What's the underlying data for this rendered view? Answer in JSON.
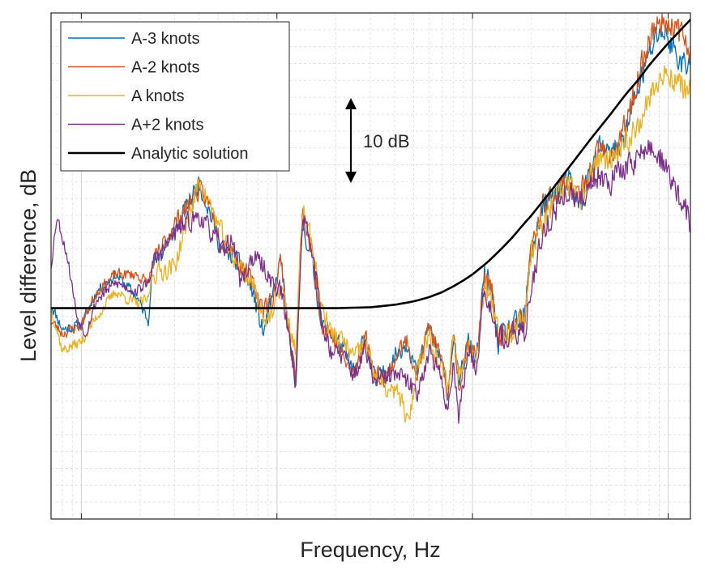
{
  "chart_data": {
    "type": "line",
    "title": "",
    "xlabel": "Frequency, Hz",
    "ylabel": "Level difference, dB",
    "x_scale": "log",
    "xlim": [
      0.7,
      1300
    ],
    "ylim": [
      -25,
      35
    ],
    "grid": true,
    "minor_grid": true,
    "tick_labels_shown": false,
    "legend_position": "top-left",
    "annotation": {
      "text": "10 dB",
      "x": 27,
      "y_from": 15,
      "y_to": 25,
      "note": "double-headed arrow spanning 10 dB"
    },
    "series": [
      {
        "name": "A-3 knots",
        "color": "#0072BD",
        "seed": 11,
        "points": [
          [
            0.7,
            0.5
          ],
          [
            0.8,
            -2.5
          ],
          [
            1.0,
            -2
          ],
          [
            1.2,
            2
          ],
          [
            1.5,
            4
          ],
          [
            1.9,
            1.5
          ],
          [
            2.2,
            -1.5
          ],
          [
            2.3,
            5
          ],
          [
            3.0,
            9
          ],
          [
            4.0,
            15
          ],
          [
            4.6,
            11
          ],
          [
            5.2,
            7
          ],
          [
            6.0,
            6
          ],
          [
            6.5,
            5
          ],
          [
            7.5,
            2
          ],
          [
            8.5,
            -3
          ],
          [
            9.5,
            1
          ],
          [
            10.5,
            6
          ],
          [
            11.5,
            -4
          ],
          [
            12.5,
            -8
          ],
          [
            13.5,
            10
          ],
          [
            15,
            6
          ],
          [
            17,
            -2
          ],
          [
            19,
            -3
          ],
          [
            22,
            -5
          ],
          [
            25,
            -8
          ],
          [
            28,
            -3
          ],
          [
            32,
            -9
          ],
          [
            37,
            -7
          ],
          [
            42,
            -5
          ],
          [
            47,
            -4
          ],
          [
            52,
            -8
          ],
          [
            60,
            -2
          ],
          [
            68,
            -6
          ],
          [
            75,
            -10
          ],
          [
            80,
            -3
          ],
          [
            85,
            -9
          ],
          [
            95,
            -4
          ],
          [
            105,
            -6
          ],
          [
            115,
            4
          ],
          [
            125,
            2
          ],
          [
            135,
            -4
          ],
          [
            150,
            -3
          ],
          [
            170,
            -2
          ],
          [
            185,
            -1
          ],
          [
            200,
            7
          ],
          [
            230,
            12
          ],
          [
            270,
            14
          ],
          [
            310,
            15
          ],
          [
            350,
            12
          ],
          [
            400,
            16
          ],
          [
            450,
            19
          ],
          [
            500,
            18
          ],
          [
            560,
            19
          ],
          [
            630,
            22
          ],
          [
            700,
            26
          ],
          [
            800,
            30
          ],
          [
            900,
            33
          ],
          [
            1000,
            32
          ],
          [
            1100,
            30
          ],
          [
            1200,
            29
          ],
          [
            1300,
            29
          ]
        ]
      },
      {
        "name": "A-2 knots",
        "color": "#D95319",
        "seed": 23,
        "points": [
          [
            0.7,
            -1.5
          ],
          [
            0.8,
            -3
          ],
          [
            1.0,
            -2
          ],
          [
            1.2,
            2
          ],
          [
            1.5,
            4
          ],
          [
            1.9,
            4
          ],
          [
            2.2,
            3
          ],
          [
            2.3,
            5
          ],
          [
            3.0,
            10
          ],
          [
            4.0,
            14
          ],
          [
            4.6,
            12
          ],
          [
            5.2,
            8
          ],
          [
            6.0,
            7
          ],
          [
            6.5,
            5
          ],
          [
            7.5,
            3
          ],
          [
            8.5,
            0
          ],
          [
            9.5,
            1
          ],
          [
            10.5,
            6
          ],
          [
            11.5,
            -3
          ],
          [
            12.5,
            -8
          ],
          [
            13.5,
            11
          ],
          [
            15,
            7
          ],
          [
            17,
            -2
          ],
          [
            19,
            -3
          ],
          [
            22,
            -6
          ],
          [
            25,
            -8
          ],
          [
            28,
            -3
          ],
          [
            32,
            -8
          ],
          [
            37,
            -8
          ],
          [
            42,
            -5
          ],
          [
            47,
            -4
          ],
          [
            52,
            -8
          ],
          [
            60,
            -2
          ],
          [
            68,
            -6
          ],
          [
            75,
            -10
          ],
          [
            80,
            -3
          ],
          [
            85,
            -9
          ],
          [
            95,
            -4
          ],
          [
            105,
            -6
          ],
          [
            115,
            4
          ],
          [
            125,
            2
          ],
          [
            135,
            -4
          ],
          [
            150,
            -3
          ],
          [
            170,
            -2
          ],
          [
            185,
            -1
          ],
          [
            200,
            7
          ],
          [
            230,
            12
          ],
          [
            270,
            14
          ],
          [
            310,
            15
          ],
          [
            350,
            13
          ],
          [
            400,
            16
          ],
          [
            450,
            19
          ],
          [
            500,
            18
          ],
          [
            560,
            19
          ],
          [
            630,
            23
          ],
          [
            700,
            27
          ],
          [
            800,
            32
          ],
          [
            900,
            34
          ],
          [
            1000,
            34
          ],
          [
            1100,
            33
          ],
          [
            1200,
            32
          ],
          [
            1300,
            31
          ]
        ]
      },
      {
        "name": "A knots",
        "color": "#EDB120",
        "seed": 37,
        "points": [
          [
            0.7,
            0
          ],
          [
            0.8,
            -5
          ],
          [
            1.0,
            -4
          ],
          [
            1.2,
            -1
          ],
          [
            1.5,
            2
          ],
          [
            1.9,
            0.5
          ],
          [
            2.2,
            1
          ],
          [
            2.3,
            4
          ],
          [
            3.0,
            5
          ],
          [
            4.0,
            15
          ],
          [
            4.6,
            12
          ],
          [
            5.2,
            9
          ],
          [
            6.0,
            6
          ],
          [
            6.5,
            5
          ],
          [
            7.5,
            3
          ],
          [
            8.5,
            -1
          ],
          [
            9.5,
            -1
          ],
          [
            10.5,
            3
          ],
          [
            11.5,
            -2
          ],
          [
            12.5,
            -5
          ],
          [
            13.5,
            12
          ],
          [
            15,
            8
          ],
          [
            17,
            0
          ],
          [
            19,
            -3
          ],
          [
            22,
            -4
          ],
          [
            25,
            -6
          ],
          [
            28,
            -4
          ],
          [
            32,
            -8
          ],
          [
            37,
            -10
          ],
          [
            42,
            -10
          ],
          [
            47,
            -14
          ],
          [
            52,
            -7
          ],
          [
            60,
            -3
          ],
          [
            68,
            -7
          ],
          [
            75,
            -9
          ],
          [
            80,
            -3
          ],
          [
            85,
            -8
          ],
          [
            95,
            -4
          ],
          [
            105,
            -6
          ],
          [
            115,
            3
          ],
          [
            125,
            0
          ],
          [
            135,
            -3
          ],
          [
            150,
            -3
          ],
          [
            170,
            -2
          ],
          [
            185,
            -1
          ],
          [
            200,
            7
          ],
          [
            230,
            10
          ],
          [
            270,
            13
          ],
          [
            310,
            15
          ],
          [
            350,
            12
          ],
          [
            400,
            16
          ],
          [
            450,
            18
          ],
          [
            500,
            17
          ],
          [
            560,
            18
          ],
          [
            630,
            20
          ],
          [
            700,
            22
          ],
          [
            800,
            25
          ],
          [
            900,
            27
          ],
          [
            1000,
            28
          ],
          [
            1100,
            27
          ],
          [
            1200,
            26
          ],
          [
            1300,
            26
          ]
        ]
      },
      {
        "name": "A+2 knots",
        "color": "#7E2F8E",
        "seed": 53,
        "points": [
          [
            0.7,
            5
          ],
          [
            0.75,
            11
          ],
          [
            0.85,
            6
          ],
          [
            0.95,
            -1
          ],
          [
            1.05,
            -3
          ],
          [
            1.2,
            1
          ],
          [
            1.5,
            3
          ],
          [
            1.9,
            2
          ],
          [
            2.2,
            3
          ],
          [
            2.3,
            5
          ],
          [
            3.0,
            9
          ],
          [
            4.0,
            11
          ],
          [
            4.6,
            9
          ],
          [
            5.2,
            7
          ],
          [
            6.0,
            8
          ],
          [
            6.5,
            3
          ],
          [
            7.5,
            6
          ],
          [
            8.5,
            5
          ],
          [
            9.5,
            3
          ],
          [
            10.5,
            2
          ],
          [
            11.5,
            -3
          ],
          [
            12.5,
            -9
          ],
          [
            13.5,
            11
          ],
          [
            15,
            8
          ],
          [
            17,
            -2
          ],
          [
            19,
            -5
          ],
          [
            22,
            -6
          ],
          [
            25,
            -8
          ],
          [
            28,
            -5
          ],
          [
            32,
            -9
          ],
          [
            37,
            -8
          ],
          [
            42,
            -8
          ],
          [
            47,
            -9
          ],
          [
            52,
            -10
          ],
          [
            60,
            -5
          ],
          [
            68,
            -8
          ],
          [
            75,
            -12
          ],
          [
            80,
            -6
          ],
          [
            85,
            -13
          ],
          [
            95,
            -5
          ],
          [
            105,
            -7
          ],
          [
            115,
            3
          ],
          [
            125,
            0
          ],
          [
            135,
            -3
          ],
          [
            150,
            -4
          ],
          [
            170,
            -3
          ],
          [
            185,
            -3
          ],
          [
            200,
            3
          ],
          [
            230,
            9
          ],
          [
            270,
            12
          ],
          [
            310,
            14
          ],
          [
            350,
            12
          ],
          [
            400,
            15
          ],
          [
            450,
            16
          ],
          [
            500,
            15
          ],
          [
            560,
            16
          ],
          [
            630,
            17
          ],
          [
            700,
            18
          ],
          [
            800,
            19
          ],
          [
            900,
            18
          ],
          [
            1000,
            16
          ],
          [
            1100,
            14
          ],
          [
            1200,
            12
          ],
          [
            1300,
            10
          ]
        ]
      },
      {
        "name": "Analytic solution",
        "color": "#000000",
        "seed": 0,
        "points": [
          [
            0.7,
            0
          ],
          [
            5,
            0
          ],
          [
            10,
            0
          ],
          [
            20,
            0
          ],
          [
            30,
            0.1
          ],
          [
            40,
            0.4
          ],
          [
            50,
            0.8
          ],
          [
            60,
            1.3
          ],
          [
            70,
            1.9
          ],
          [
            80,
            2.6
          ],
          [
            90,
            3.3
          ],
          [
            100,
            4.0
          ],
          [
            120,
            5.5
          ],
          [
            140,
            7.0
          ],
          [
            160,
            8.4
          ],
          [
            180,
            9.8
          ],
          [
            200,
            11.0
          ],
          [
            250,
            13.8
          ],
          [
            300,
            16.2
          ],
          [
            400,
            20.0
          ],
          [
            500,
            22.8
          ],
          [
            600,
            25.2
          ],
          [
            700,
            27.0
          ],
          [
            800,
            28.8
          ],
          [
            900,
            30.2
          ],
          [
            1000,
            31.4
          ],
          [
            1150,
            32.9
          ],
          [
            1300,
            34.2
          ]
        ]
      }
    ]
  }
}
